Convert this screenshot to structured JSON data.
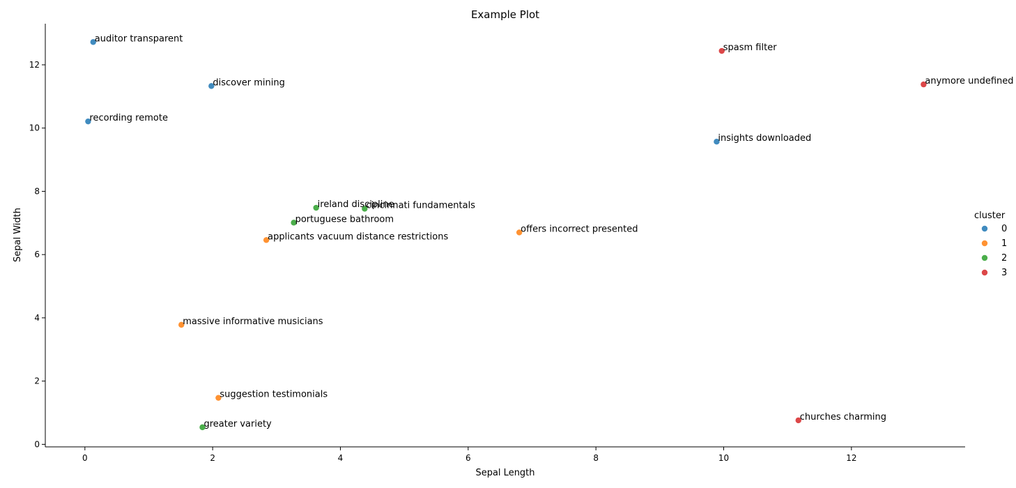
{
  "chart_data": {
    "type": "scatter",
    "title": "Example Plot",
    "xlabel": "Sepal Length",
    "ylabel": "Sepal Width",
    "xlim": [
      -0.62,
      13.78
    ],
    "ylim": [
      -0.08,
      13.3
    ],
    "xticks": [
      0,
      2,
      4,
      6,
      8,
      10,
      12
    ],
    "yticks": [
      0,
      2,
      4,
      6,
      8,
      10,
      12
    ],
    "grid": false,
    "legend": {
      "title": "cluster",
      "placement": "right"
    },
    "series": [
      {
        "name": "0",
        "color": "#1f77b4",
        "points": [
          {
            "label": "auditor transparent",
            "x": 0.13,
            "y": 12.72
          },
          {
            "label": "discover mining",
            "x": 1.98,
            "y": 11.33
          },
          {
            "label": "recording remote",
            "x": 0.05,
            "y": 10.21
          },
          {
            "label": "insights downloaded",
            "x": 9.89,
            "y": 9.57
          }
        ]
      },
      {
        "name": "1",
        "color": "#ff7f0e",
        "points": [
          {
            "label": "offers incorrect presented",
            "x": 6.8,
            "y": 6.7
          },
          {
            "label": "applicants vacuum distance restrictions",
            "x": 2.84,
            "y": 6.46
          },
          {
            "label": "massive informative musicians",
            "x": 1.51,
            "y": 3.78
          },
          {
            "label": "suggestion testimonials",
            "x": 2.09,
            "y": 1.47
          }
        ]
      },
      {
        "name": "2",
        "color": "#2ca02c",
        "points": [
          {
            "label": "ireland discipline",
            "x": 3.62,
            "y": 7.48
          },
          {
            "label": "cincinnati fundamentals",
            "x": 4.38,
            "y": 7.45
          },
          {
            "label": "portuguese bathroom",
            "x": 3.27,
            "y": 7.01
          },
          {
            "label": "greater variety",
            "x": 1.84,
            "y": 0.54
          }
        ]
      },
      {
        "name": "3",
        "color": "#d62728",
        "points": [
          {
            "label": "spasm filter",
            "x": 9.97,
            "y": 12.44
          },
          {
            "label": "anymore undefined",
            "x": 13.13,
            "y": 11.38
          },
          {
            "label": "churches charming",
            "x": 11.17,
            "y": 0.76
          }
        ]
      }
    ]
  }
}
